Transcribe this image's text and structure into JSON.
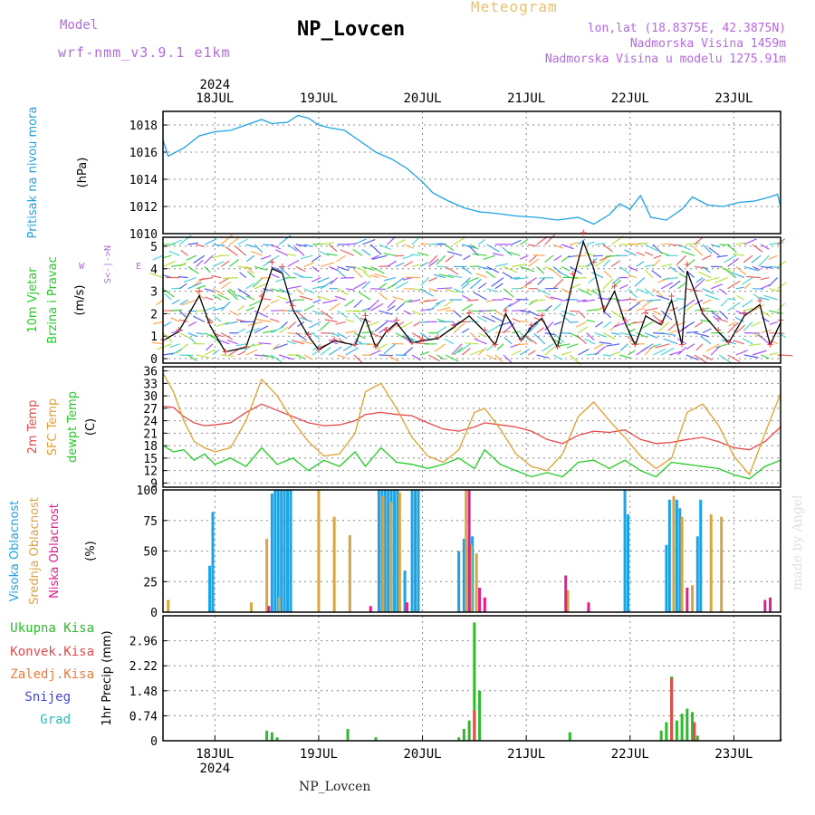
{
  "header": {
    "model_label": "Model",
    "model_value": "wrf-nmm_v3.9.1 e1km",
    "station": "NP_Lovcen",
    "meteogram_title": "Meteogram",
    "lonlat": "lon,lat (18.8375E, 42.3875N)",
    "altitude": "Nadmorska Visina 1459m",
    "model_altitude": "Nadmorska Visina u modelu 1275.91m"
  },
  "footer": {
    "station": "NP_Lovcen"
  },
  "watermark": "made by Angel",
  "colors": {
    "pressure": "#1ca3e6",
    "temp_2m": "#e8484a",
    "temp_sfc": "#e0a030",
    "dewpoint": "#22cc22",
    "cloud_high": "#1ca3e6",
    "cloud_mid": "#d9a441",
    "cloud_low": "#e0208a",
    "precip_total": "#2bbb2b",
    "precip_conv": "#e8484a",
    "precip_strat": "#f07a3a",
    "snow": "#4444dd",
    "hail": "#22c0c0",
    "wind_line": "#000000",
    "wind_gust": "#e8484a",
    "wind_dir_axis": "#b469e0"
  },
  "chart_data": {
    "type": "line",
    "time_axis": {
      "year": "2024",
      "day_labels": [
        "18JUL",
        "19JUL",
        "20JUL",
        "21JUL",
        "22JUL",
        "23JUL"
      ],
      "start_day": 17.5,
      "end_day": 23.45,
      "major_tick_days": [
        18,
        19,
        20,
        21,
        22,
        23
      ]
    },
    "panels": [
      {
        "id": "pressure",
        "labels": [
          "Pritisak na nivou mora",
          "(hPa)"
        ],
        "ylim": [
          1010,
          1019
        ],
        "ticks": [
          1010,
          1012,
          1014,
          1016,
          1018
        ],
        "series": [
          {
            "name": "Pritisak na nivou mora",
            "x": [
              17.5,
              17.55,
              17.7,
              17.85,
              18.0,
              18.15,
              18.3,
              18.45,
              18.55,
              18.7,
              18.8,
              18.9,
              19.0,
              19.1,
              19.25,
              19.4,
              19.55,
              19.7,
              19.85,
              20.0,
              20.1,
              20.25,
              20.4,
              20.55,
              20.7,
              20.9,
              21.1,
              21.3,
              21.5,
              21.65,
              21.8,
              21.9,
              22.0,
              22.1,
              22.2,
              22.35,
              22.5,
              22.6,
              22.75,
              22.9,
              23.05,
              23.2,
              23.35,
              23.42,
              23.45
            ],
            "values": [
              1016.9,
              1015.7,
              1016.3,
              1017.2,
              1017.5,
              1017.6,
              1018.0,
              1018.4,
              1018.1,
              1018.2,
              1018.7,
              1018.5,
              1018.0,
              1017.8,
              1017.6,
              1016.8,
              1016.0,
              1015.5,
              1014.8,
              1013.8,
              1013.0,
              1012.4,
              1011.9,
              1011.6,
              1011.5,
              1011.3,
              1011.2,
              1011.0,
              1011.2,
              1010.7,
              1011.4,
              1012.2,
              1011.8,
              1012.8,
              1011.2,
              1011.0,
              1011.8,
              1012.7,
              1012.1,
              1012.0,
              1012.3,
              1012.4,
              1012.7,
              1012.9,
              1012.0
            ]
          }
        ]
      },
      {
        "id": "wind",
        "labels": [
          "10m Vjetar",
          "Brzina i Pravac",
          "(m/s)"
        ],
        "ylim": [
          -0.2,
          5.4
        ],
        "ticks": [
          0,
          1,
          2,
          3,
          4,
          5
        ],
        "direction_axis": {
          "label_w": "W",
          "label_e": "E",
          "arrow": "<-|->",
          "label_s": "S"
        },
        "series": [
          {
            "name": "10m Vjetar",
            "x": [
              17.5,
              17.65,
              17.85,
              17.95,
              18.1,
              18.3,
              18.45,
              18.55,
              18.65,
              18.75,
              18.9,
              19.0,
              19.15,
              19.35,
              19.45,
              19.55,
              19.65,
              19.75,
              19.9,
              20.0,
              20.15,
              20.3,
              20.45,
              20.6,
              20.7,
              20.8,
              20.95,
              21.05,
              21.15,
              21.3,
              21.45,
              21.55,
              21.65,
              21.75,
              21.85,
              21.95,
              22.05,
              22.15,
              22.3,
              22.4,
              22.5,
              22.55,
              22.7,
              22.85,
              22.95,
              23.1,
              23.25,
              23.35,
              23.45
            ],
            "values": [
              0.8,
              1.2,
              2.8,
              1.5,
              0.3,
              0.5,
              2.6,
              4.0,
              3.8,
              2.2,
              1.0,
              0.4,
              0.8,
              0.6,
              1.8,
              0.5,
              1.2,
              1.6,
              0.7,
              0.8,
              0.9,
              1.4,
              1.9,
              1.2,
              0.6,
              2.0,
              0.8,
              1.4,
              1.8,
              0.5,
              3.5,
              5.2,
              4.0,
              2.1,
              3.0,
              1.6,
              0.6,
              1.9,
              1.5,
              2.6,
              0.6,
              3.9,
              2.0,
              1.2,
              0.7,
              1.9,
              2.4,
              0.6,
              1.6
            ]
          }
        ]
      },
      {
        "id": "temperature",
        "labels": [
          "2m Temp",
          "SFC Temp",
          "dewpt Temp",
          "(C)"
        ],
        "ylim": [
          8,
          37
        ],
        "ticks": [
          9,
          12,
          15,
          18,
          21,
          24,
          27,
          30,
          33,
          36
        ],
        "series": [
          {
            "name": "2m Temp",
            "x": [
              17.5,
              17.6,
              17.7,
              17.8,
              17.9,
              18.0,
              18.15,
              18.3,
              18.45,
              18.6,
              18.75,
              18.9,
              19.05,
              19.2,
              19.35,
              19.45,
              19.6,
              19.75,
              19.9,
              20.05,
              20.2,
              20.35,
              20.5,
              20.6,
              20.75,
              20.9,
              21.05,
              21.2,
              21.35,
              21.5,
              21.65,
              21.8,
              21.95,
              22.1,
              22.25,
              22.4,
              22.55,
              22.7,
              22.85,
              23.0,
              23.15,
              23.3,
              23.45
            ],
            "values": [
              27.5,
              27.2,
              25.0,
              23.5,
              22.8,
              23.0,
              23.5,
              26.0,
              28.0,
              26.5,
              25.0,
              23.5,
              22.8,
              23.0,
              24.0,
              25.5,
              26.0,
              25.5,
              25.2,
              23.5,
              22.0,
              21.5,
              22.5,
              23.5,
              23.0,
              22.5,
              21.5,
              19.5,
              18.5,
              20.5,
              21.5,
              21.2,
              21.8,
              19.5,
              18.5,
              18.8,
              19.5,
              20.0,
              19.0,
              17.5,
              17.0,
              19.0,
              22.5
            ]
          },
          {
            "name": "SFC Temp",
            "x": [
              17.5,
              17.6,
              17.7,
              17.8,
              17.9,
              18.0,
              18.15,
              18.3,
              18.45,
              18.6,
              18.75,
              18.9,
              19.05,
              19.2,
              19.35,
              19.45,
              19.6,
              19.75,
              19.9,
              20.05,
              20.2,
              20.35,
              20.5,
              20.6,
              20.75,
              20.9,
              21.05,
              21.2,
              21.35,
              21.5,
              21.65,
              21.8,
              21.95,
              22.1,
              22.25,
              22.4,
              22.55,
              22.7,
              22.85,
              23.0,
              23.15,
              23.3,
              23.45
            ],
            "values": [
              35.5,
              31.0,
              24.0,
              19.0,
              17.5,
              16.5,
              17.5,
              24.0,
              34.0,
              30.0,
              24.0,
              19.0,
              15.5,
              16.0,
              21.0,
              31.0,
              33.0,
              27.0,
              20.0,
              15.5,
              14.0,
              17.0,
              26.0,
              27.0,
              22.0,
              16.0,
              13.0,
              12.0,
              16.0,
              25.0,
              28.5,
              24.0,
              20.0,
              15.5,
              12.5,
              15.0,
              26.0,
              28.0,
              23.0,
              15.5,
              11.0,
              21.0,
              30.5
            ]
          },
          {
            "name": "dewpt Temp",
            "x": [
              17.5,
              17.6,
              17.7,
              17.8,
              17.9,
              18.0,
              18.15,
              18.3,
              18.45,
              18.6,
              18.75,
              18.9,
              19.05,
              19.2,
              19.35,
              19.45,
              19.6,
              19.75,
              19.9,
              20.05,
              20.2,
              20.35,
              20.5,
              20.6,
              20.75,
              20.9,
              21.05,
              21.2,
              21.35,
              21.5,
              21.65,
              21.8,
              21.95,
              22.1,
              22.25,
              22.4,
              22.55,
              22.7,
              22.85,
              23.0,
              23.15,
              23.3,
              23.45
            ],
            "values": [
              18.0,
              16.5,
              17.0,
              14.5,
              16.0,
              13.5,
              15.0,
              13.0,
              17.5,
              13.5,
              15.0,
              12.0,
              14.5,
              13.0,
              16.5,
              13.0,
              17.5,
              14.0,
              13.5,
              12.5,
              13.5,
              15.0,
              12.5,
              17.0,
              13.5,
              12.0,
              10.5,
              11.5,
              10.5,
              14.0,
              14.5,
              12.5,
              14.5,
              12.0,
              10.5,
              14.0,
              13.5,
              13.0,
              12.5,
              11.0,
              10.0,
              13.0,
              14.5
            ]
          }
        ]
      },
      {
        "id": "clouds",
        "labels": [
          "Visoka Oblacnost",
          "Srednja Oblacnost",
          "Niska Oblacnost",
          "(%)"
        ],
        "ylim": [
          0,
          100
        ],
        "ticks": [
          0,
          25,
          50,
          75,
          100
        ],
        "bars": [
          {
            "name": "Visoka Oblacnost",
            "x": [
              17.95,
              17.98,
              18.55,
              18.58,
              18.61,
              18.64,
              18.67,
              18.7,
              18.73,
              19.58,
              19.61,
              19.64,
              19.67,
              19.7,
              19.73,
              19.76,
              19.83,
              19.9,
              19.93,
              19.96,
              20.35,
              20.4,
              20.45,
              20.48,
              21.95,
              21.98,
              22.35,
              22.38,
              22.45,
              22.48,
              22.65,
              22.68
            ],
            "values": [
              38,
              82,
              97,
              100,
              100,
              100,
              100,
              100,
              100,
              100,
              100,
              100,
              100,
              100,
              100,
              100,
              34,
              100,
              100,
              100,
              50,
              60,
              60,
              62,
              100,
              80,
              55,
              92,
              92,
              85,
              62,
              92
            ]
          },
          {
            "name": "Srednja Oblacnost",
            "x": [
              17.55,
              18.35,
              18.5,
              18.62,
              19.0,
              19.15,
              19.3,
              19.62,
              19.7,
              19.78,
              20.42,
              20.47,
              20.52,
              21.4,
              22.42,
              22.5,
              22.6,
              22.78,
              22.88
            ],
            "values": [
              10,
              8,
              60,
              12,
              100,
              78,
              63,
              95,
              90,
              98,
              100,
              55,
              48,
              18,
              95,
              78,
              22,
              80,
              78
            ]
          },
          {
            "name": "Niska Oblacnost",
            "x": [
              18.52,
              19.5,
              19.85,
              20.45,
              20.55,
              20.6,
              21.38,
              21.6,
              22.55,
              23.3,
              23.35
            ],
            "values": [
              5,
              5,
              8,
              100,
              20,
              12,
              30,
              8,
              20,
              10,
              12
            ]
          }
        ]
      },
      {
        "id": "precip",
        "labels": [
          "Ukupna Kisa",
          "Konvek.Kisa",
          "Zaledj.Kisa",
          "Snijeg",
          "Grad",
          "1hr Precip (mm)"
        ],
        "ylim": [
          0,
          3.7
        ],
        "ticks": [
          0,
          0.74,
          1.48,
          2.22,
          2.96
        ],
        "bars": [
          {
            "name": "Ukupna Kisa",
            "x": [
              18.5,
              18.55,
              18.6,
              19.28,
              19.55,
              20.35,
              20.4,
              20.45,
              20.5,
              20.55,
              21.42,
              22.3,
              22.35,
              22.4,
              22.45,
              22.5,
              22.55,
              22.6,
              22.65,
              23.45
            ],
            "values": [
              0.3,
              0.25,
              0.1,
              0.35,
              0.1,
              0.1,
              0.35,
              0.6,
              3.5,
              1.48,
              0.25,
              0.3,
              0.55,
              1.9,
              0.6,
              0.8,
              0.95,
              0.85,
              0.15,
              0.05
            ]
          },
          {
            "name": "Konvek.Kisa",
            "x": [
              20.5,
              22.4,
              22.62
            ],
            "values": [
              0.9,
              1.85,
              0.55
            ]
          }
        ]
      }
    ]
  }
}
